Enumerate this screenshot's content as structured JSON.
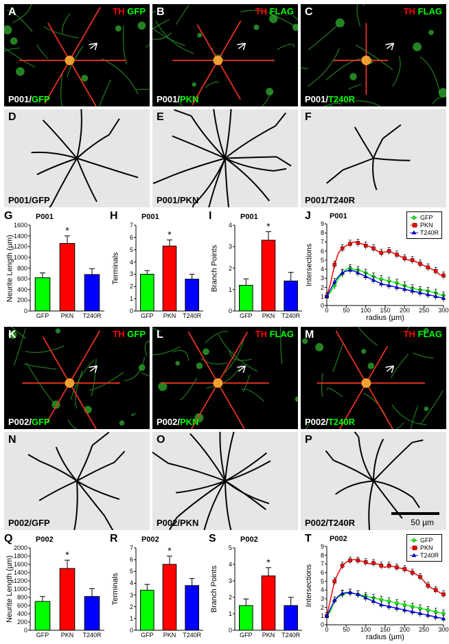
{
  "layout": {
    "micro_w": 212,
    "micro_h": 149,
    "trace_h": 143,
    "gap": 3,
    "row1_y": 6,
    "row2_y": 159,
    "row3_y": 306,
    "row4_y": 476,
    "row5_y": 629,
    "row6_y": 776,
    "col1_x": 6,
    "col2_x": 222,
    "col3_x": 438
  },
  "panels": {
    "A": {
      "letter": "A",
      "tr_red": "TH",
      "tr_green": "GFP",
      "bl_white": "P001/",
      "bl_green": "GFP"
    },
    "B": {
      "letter": "B",
      "tr_red": "TH",
      "tr_green": "FLAG",
      "bl_white": "P001/",
      "bl_green": "PKN"
    },
    "C": {
      "letter": "C",
      "tr_red": "TH",
      "tr_green": "FLAG",
      "bl_white": "P001/",
      "bl_green": "T240R"
    },
    "D": {
      "letter": "D",
      "bl": "P001/GFP"
    },
    "E": {
      "letter": "E",
      "bl": "P001/PKN"
    },
    "F": {
      "letter": "F",
      "bl": "P001/T240R"
    },
    "K": {
      "letter": "K",
      "tr_red": "TH",
      "tr_green": "GFP",
      "bl_white": "P002/",
      "bl_green": "GFP"
    },
    "L": {
      "letter": "L",
      "tr_red": "TH",
      "tr_green": "FLAG",
      "bl_white": "P002/",
      "bl_green": "PKN"
    },
    "M": {
      "letter": "M",
      "tr_red": "TH",
      "tr_green": "FLAG",
      "bl_white": "P002/",
      "bl_green": "T240R"
    },
    "N": {
      "letter": "N",
      "bl": "P002/GFP"
    },
    "O": {
      "letter": "O",
      "bl": "P002/PKN"
    },
    "P": {
      "letter": "P",
      "bl": "P002/T240R",
      "scale": "50 µm"
    }
  },
  "colors": {
    "gfp": "#00ff00",
    "pkn": "#ff0000",
    "t240r": "#0000ff",
    "neuron_green": "#2a9b2a",
    "neuron_red": "#e83020",
    "neuron_orange": "#f0a030"
  },
  "charts": {
    "G": {
      "letter": "G",
      "title": "P001",
      "ylabel": "Neurite Length (µm)",
      "ymax": 1600,
      "ystep": 200,
      "bars": [
        {
          "label": "GFP",
          "val": 620,
          "err": 90,
          "color": "#00ff00"
        },
        {
          "label": "PKN",
          "val": 1260,
          "err": 140,
          "color": "#ff0000",
          "star": "*"
        },
        {
          "label": "T240R",
          "val": 680,
          "err": 110,
          "color": "#0000ff"
        }
      ]
    },
    "H": {
      "letter": "H",
      "title": "P001",
      "ylabel": "Terminals",
      "ymax": 7,
      "ystep": 1,
      "bars": [
        {
          "label": "GFP",
          "val": 3.0,
          "err": 0.3,
          "color": "#00ff00"
        },
        {
          "label": "PKN",
          "val": 5.3,
          "err": 0.5,
          "color": "#ff0000",
          "star": "*"
        },
        {
          "label": "T240R",
          "val": 2.6,
          "err": 0.4,
          "color": "#0000ff"
        }
      ]
    },
    "I": {
      "letter": "I",
      "title": "P001",
      "ylabel": "Branch Points",
      "ymax": 4,
      "ystep": 1,
      "bars": [
        {
          "label": "GFP",
          "val": 1.2,
          "err": 0.3,
          "color": "#00ff00"
        },
        {
          "label": "PKN",
          "val": 3.3,
          "err": 0.4,
          "color": "#ff0000",
          "star": "*"
        },
        {
          "label": "T240R",
          "val": 1.4,
          "err": 0.4,
          "color": "#0000ff"
        }
      ]
    },
    "J": {
      "letter": "J",
      "title": "P001",
      "ylabel": "Intersections",
      "xlabel": "radius (µm)",
      "ymax": 9,
      "ystep": 1,
      "xmax": 300,
      "xstep": 50,
      "series": [
        {
          "name": "GFP",
          "color": "#00ff00",
          "marker": "diamond",
          "data": [
            [
              0,
              1.0
            ],
            [
              10,
              1.5
            ],
            [
              20,
              2.2
            ],
            [
              30,
              3.0
            ],
            [
              40,
              3.5
            ],
            [
              50,
              4.0
            ],
            [
              60,
              4.1
            ],
            [
              70,
              4.0
            ],
            [
              80,
              3.9
            ],
            [
              90,
              3.8
            ],
            [
              100,
              3.6
            ],
            [
              110,
              3.4
            ],
            [
              120,
              3.2
            ],
            [
              130,
              3.0
            ],
            [
              140,
              2.9
            ],
            [
              150,
              2.8
            ],
            [
              160,
              2.7
            ],
            [
              170,
              2.6
            ],
            [
              180,
              2.5
            ],
            [
              190,
              2.3
            ],
            [
              200,
              2.2
            ],
            [
              210,
              2.0
            ],
            [
              220,
              1.9
            ],
            [
              230,
              1.8
            ],
            [
              240,
              1.7
            ],
            [
              250,
              1.7
            ],
            [
              260,
              1.6
            ],
            [
              270,
              1.5
            ],
            [
              280,
              1.4
            ],
            [
              290,
              1.2
            ],
            [
              300,
              1.1
            ]
          ]
        },
        {
          "name": "PKN",
          "color": "#ff0000",
          "marker": "square",
          "data": [
            [
              0,
              1.0
            ],
            [
              10,
              2.5
            ],
            [
              20,
              4.5
            ],
            [
              30,
              5.8
            ],
            [
              40,
              6.3
            ],
            [
              50,
              6.6
            ],
            [
              60,
              6.8
            ],
            [
              70,
              7.0
            ],
            [
              80,
              6.9
            ],
            [
              90,
              6.8
            ],
            [
              100,
              6.6
            ],
            [
              110,
              6.5
            ],
            [
              120,
              6.3
            ],
            [
              130,
              6.0
            ],
            [
              140,
              5.8
            ],
            [
              150,
              5.9
            ],
            [
              160,
              6.0
            ],
            [
              170,
              5.8
            ],
            [
              180,
              5.6
            ],
            [
              190,
              5.4
            ],
            [
              200,
              5.2
            ],
            [
              210,
              5.0
            ],
            [
              220,
              5.0
            ],
            [
              230,
              4.8
            ],
            [
              240,
              4.6
            ],
            [
              250,
              4.4
            ],
            [
              260,
              4.2
            ],
            [
              270,
              4.0
            ],
            [
              280,
              3.8
            ],
            [
              290,
              3.4
            ],
            [
              300,
              3.3
            ]
          ]
        },
        {
          "name": "T240R",
          "color": "#0000ff",
          "marker": "triangle",
          "data": [
            [
              0,
              1.0
            ],
            [
              10,
              1.8
            ],
            [
              20,
              2.6
            ],
            [
              30,
              3.2
            ],
            [
              40,
              3.6
            ],
            [
              50,
              3.8
            ],
            [
              60,
              3.9
            ],
            [
              70,
              3.8
            ],
            [
              80,
              3.6
            ],
            [
              90,
              3.4
            ],
            [
              100,
              3.2
            ],
            [
              110,
              3.0
            ],
            [
              120,
              2.8
            ],
            [
              130,
              2.6
            ],
            [
              140,
              2.4
            ],
            [
              150,
              2.3
            ],
            [
              160,
              2.2
            ],
            [
              170,
              2.1
            ],
            [
              180,
              2.0
            ],
            [
              190,
              1.9
            ],
            [
              200,
              1.8
            ],
            [
              210,
              1.7
            ],
            [
              220,
              1.6
            ],
            [
              230,
              1.5
            ],
            [
              240,
              1.4
            ],
            [
              250,
              1.3
            ],
            [
              260,
              1.2
            ],
            [
              270,
              1.1
            ],
            [
              280,
              1.0
            ],
            [
              290,
              0.9
            ],
            [
              300,
              0.8
            ]
          ]
        }
      ]
    },
    "Q": {
      "letter": "Q",
      "title": "P002",
      "ylabel": "Neurite Length (µm)",
      "ymax": 2000,
      "ystep": 200,
      "bars": [
        {
          "label": "GFP",
          "val": 700,
          "err": 120,
          "color": "#00ff00"
        },
        {
          "label": "PKN",
          "val": 1500,
          "err": 200,
          "color": "#ff0000",
          "star": "*"
        },
        {
          "label": "T240R",
          "val": 820,
          "err": 190,
          "color": "#0000ff"
        }
      ]
    },
    "R": {
      "letter": "R",
      "title": "P002",
      "ylabel": "Terminals",
      "ymax": 7,
      "ystep": 1,
      "bars": [
        {
          "label": "GFP",
          "val": 3.4,
          "err": 0.5,
          "color": "#00ff00"
        },
        {
          "label": "PKN",
          "val": 5.6,
          "err": 0.7,
          "color": "#ff0000",
          "star": "*"
        },
        {
          "label": "T240R",
          "val": 3.8,
          "err": 0.6,
          "color": "#0000ff"
        }
      ]
    },
    "S": {
      "letter": "S",
      "title": "P002",
      "ylabel": "Branch Points",
      "ymax": 5,
      "ystep": 1,
      "bars": [
        {
          "label": "GFP",
          "val": 1.5,
          "err": 0.4,
          "color": "#00ff00"
        },
        {
          "label": "PKN",
          "val": 3.3,
          "err": 0.5,
          "color": "#ff0000",
          "star": "*"
        },
        {
          "label": "T240R",
          "val": 1.5,
          "err": 0.5,
          "color": "#0000ff"
        }
      ]
    },
    "T": {
      "letter": "T",
      "title": "P002",
      "ylabel": "Intersections",
      "xlabel": "radius (µm)",
      "ymax": 9,
      "ystep": 1,
      "xmax": 300,
      "xstep": 50,
      "series": [
        {
          "name": "GFP",
          "color": "#00ff00",
          "marker": "diamond",
          "data": [
            [
              0,
              1.0
            ],
            [
              10,
              1.6
            ],
            [
              20,
              2.8
            ],
            [
              30,
              3.2
            ],
            [
              40,
              3.5
            ],
            [
              50,
              3.6
            ],
            [
              60,
              3.7
            ],
            [
              70,
              3.6
            ],
            [
              80,
              3.5
            ],
            [
              90,
              3.4
            ],
            [
              100,
              3.3
            ],
            [
              110,
              3.2
            ],
            [
              120,
              3.1
            ],
            [
              130,
              3.0
            ],
            [
              140,
              2.9
            ],
            [
              150,
              2.8
            ],
            [
              160,
              2.7
            ],
            [
              170,
              2.6
            ],
            [
              180,
              2.5
            ],
            [
              190,
              2.4
            ],
            [
              200,
              2.3
            ],
            [
              210,
              2.2
            ],
            [
              220,
              2.1
            ],
            [
              230,
              2.0
            ],
            [
              240,
              1.9
            ],
            [
              250,
              1.8
            ],
            [
              260,
              1.7
            ],
            [
              270,
              1.6
            ],
            [
              280,
              1.5
            ],
            [
              290,
              1.4
            ],
            [
              300,
              1.3
            ]
          ]
        },
        {
          "name": "PKN",
          "color": "#ff0000",
          "marker": "square",
          "data": [
            [
              0,
              1.0
            ],
            [
              10,
              3.0
            ],
            [
              20,
              5.0
            ],
            [
              30,
              6.0
            ],
            [
              40,
              6.8
            ],
            [
              50,
              7.2
            ],
            [
              60,
              7.4
            ],
            [
              70,
              7.5
            ],
            [
              80,
              7.4
            ],
            [
              90,
              7.3
            ],
            [
              100,
              7.2
            ],
            [
              110,
              7.0
            ],
            [
              120,
              7.1
            ],
            [
              130,
              7.0
            ],
            [
              140,
              6.8
            ],
            [
              150,
              6.6
            ],
            [
              160,
              6.8
            ],
            [
              170,
              6.7
            ],
            [
              180,
              6.6
            ],
            [
              190,
              6.5
            ],
            [
              200,
              6.4
            ],
            [
              210,
              6.2
            ],
            [
              220,
              6.0
            ],
            [
              230,
              5.8
            ],
            [
              240,
              5.5
            ],
            [
              250,
              5.0
            ],
            [
              260,
              4.5
            ],
            [
              270,
              4.2
            ],
            [
              280,
              4.0
            ],
            [
              290,
              3.7
            ],
            [
              300,
              3.5
            ]
          ]
        },
        {
          "name": "T240R",
          "color": "#0000ff",
          "marker": "triangle",
          "data": [
            [
              0,
              1.0
            ],
            [
              10,
              1.9
            ],
            [
              20,
              2.8
            ],
            [
              30,
              3.3
            ],
            [
              40,
              3.6
            ],
            [
              50,
              3.7
            ],
            [
              60,
              3.7
            ],
            [
              70,
              3.6
            ],
            [
              80,
              3.5
            ],
            [
              90,
              3.3
            ],
            [
              100,
              3.1
            ],
            [
              110,
              2.9
            ],
            [
              120,
              2.7
            ],
            [
              130,
              2.5
            ],
            [
              140,
              2.3
            ],
            [
              150,
              2.2
            ],
            [
              160,
              2.1
            ],
            [
              170,
              2.0
            ],
            [
              180,
              1.9
            ],
            [
              190,
              1.8
            ],
            [
              200,
              1.7
            ],
            [
              210,
              1.6
            ],
            [
              220,
              1.5
            ],
            [
              230,
              1.4
            ],
            [
              240,
              1.3
            ],
            [
              250,
              1.2
            ],
            [
              260,
              1.1
            ],
            [
              270,
              1.0
            ],
            [
              280,
              0.9
            ],
            [
              290,
              0.8
            ],
            [
              300,
              0.7
            ]
          ]
        }
      ]
    }
  }
}
